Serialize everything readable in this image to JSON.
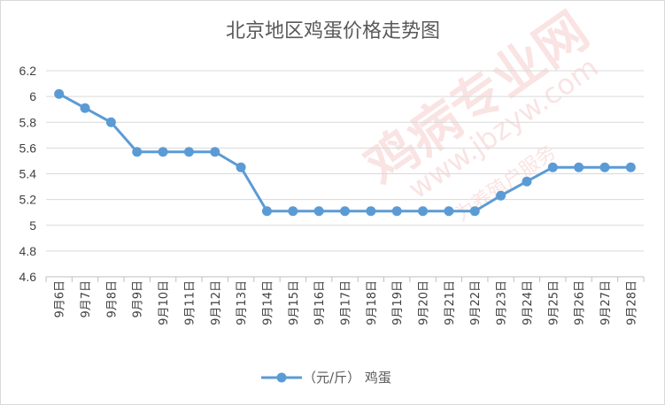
{
  "chart_data": {
    "type": "line",
    "title": "北京地区鸡蛋价格走势图",
    "categories": [
      "9月6日",
      "9月7日",
      "9月8日",
      "9月9日",
      "9月10日",
      "9月11日",
      "9月12日",
      "9月13日",
      "9月14日",
      "9月15日",
      "9月16日",
      "9月17日",
      "9月18日",
      "9月19日",
      "9月20日",
      "9月21日",
      "9月22日",
      "9月23日",
      "9月24日",
      "9月25日",
      "9月26日",
      "9月27日",
      "9月28日"
    ],
    "series": [
      {
        "name": "（元/斤） 鸡蛋",
        "values": [
          6.02,
          5.91,
          5.8,
          5.57,
          5.57,
          5.57,
          5.57,
          5.45,
          5.11,
          5.11,
          5.11,
          5.11,
          5.11,
          5.11,
          5.11,
          5.11,
          5.11,
          5.23,
          5.34,
          5.45,
          5.45,
          5.45,
          5.45
        ],
        "color": "#5b9bd5"
      }
    ],
    "ylim": [
      4.6,
      6.2
    ],
    "yticks": [
      "4.6",
      "4.8",
      "5",
      "5.2",
      "5.4",
      "5.6",
      "5.8",
      "6",
      "6.2"
    ],
    "grid": true,
    "legend_position": "bottom"
  },
  "watermark": {
    "text_cn": "鸡病专业网",
    "text_url": "www.jbzyw.com",
    "text_slogan": "为养殖户服务"
  }
}
